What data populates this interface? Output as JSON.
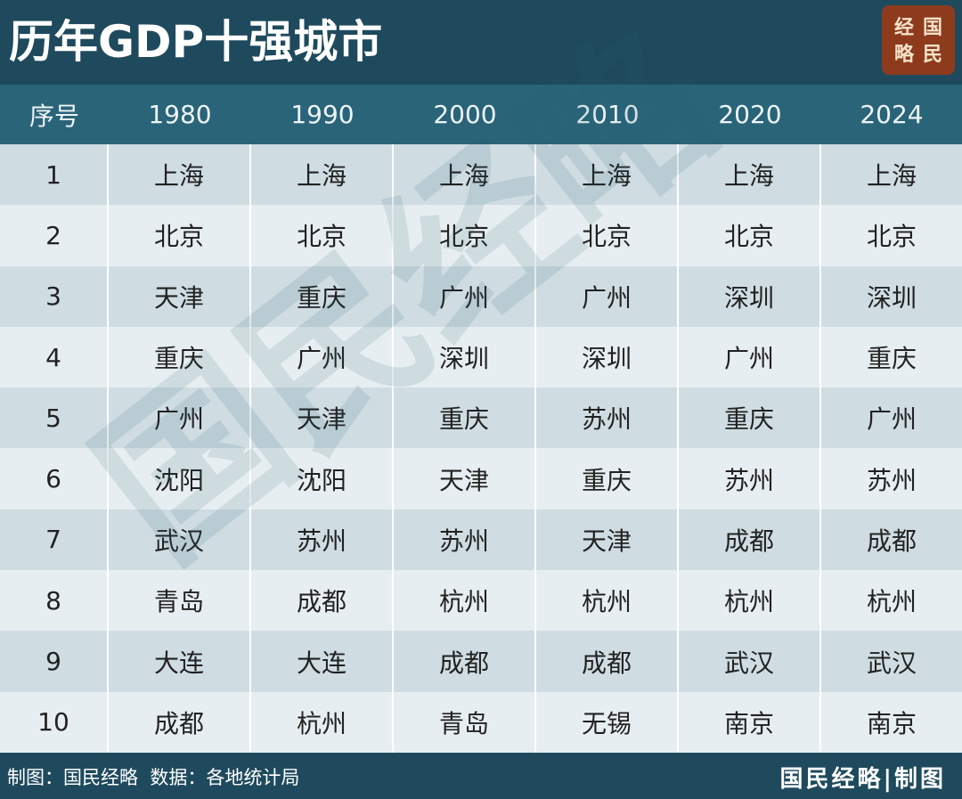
{
  "title": "历年GDP十强城市",
  "logo": {
    "lines": [
      "经国",
      "略民"
    ]
  },
  "watermark": "国民经略",
  "table": {
    "header": [
      "序号",
      "1980",
      "1990",
      "2000",
      "2010",
      "2020",
      "2024"
    ],
    "rows": [
      [
        "1",
        "上海",
        "上海",
        "上海",
        "上海",
        "上海",
        "上海"
      ],
      [
        "2",
        "北京",
        "北京",
        "北京",
        "北京",
        "北京",
        "北京"
      ],
      [
        "3",
        "天津",
        "重庆",
        "广州",
        "广州",
        "深圳",
        "深圳"
      ],
      [
        "4",
        "重庆",
        "广州",
        "深圳",
        "深圳",
        "广州",
        "重庆"
      ],
      [
        "5",
        "广州",
        "天津",
        "重庆",
        "苏州",
        "重庆",
        "广州"
      ],
      [
        "6",
        "沈阳",
        "沈阳",
        "天津",
        "重庆",
        "苏州",
        "苏州"
      ],
      [
        "7",
        "武汉",
        "苏州",
        "苏州",
        "天津",
        "成都",
        "成都"
      ],
      [
        "8",
        "青岛",
        "成都",
        "杭州",
        "杭州",
        "杭州",
        "杭州"
      ],
      [
        "9",
        "大连",
        "大连",
        "成都",
        "成都",
        "武汉",
        "武汉"
      ],
      [
        "10",
        "成都",
        "杭州",
        "青岛",
        "无锡",
        "南京",
        "南京"
      ]
    ]
  },
  "footer": {
    "left": "制图：国民经略  数据：各地统计局",
    "right": "国民经略|制图"
  }
}
